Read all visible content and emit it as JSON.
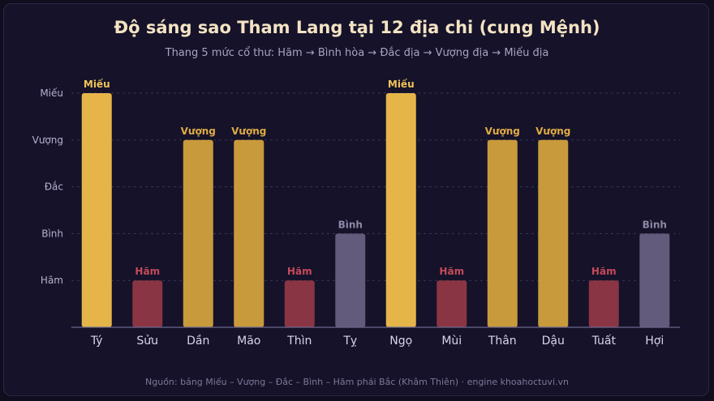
{
  "chart_data": {
    "type": "bar",
    "title": "Độ sáng sao Tham Lang tại 12 địa chi (cung Mệnh)",
    "subtitle": "Thang 5 mức cổ thư: Hãm → Bình hòa → Đắc địa → Vượng địa → Miếu địa",
    "source": "Nguồn: bảng Miếu – Vượng – Đắc – Bình – Hãm phái Bắc (Khâm Thiên) · engine khoahoctuvi.vn",
    "y_tick_labels": [
      "Hãm",
      "Bình",
      "Đắc",
      "Vượng",
      "Miếu"
    ],
    "ylim": [
      0,
      5
    ],
    "grid": true,
    "categories": [
      "Tý",
      "Sửu",
      "Dần",
      "Mão",
      "Thìn",
      "Tỵ",
      "Ngọ",
      "Mùi",
      "Thân",
      "Dậu",
      "Tuất",
      "Hợi"
    ],
    "values": [
      5,
      1,
      4,
      4,
      1,
      2,
      5,
      1,
      4,
      4,
      1,
      2
    ],
    "data_labels": [
      "Miếu",
      "Hãm",
      "Vượng",
      "Vượng",
      "Hãm",
      "Bình",
      "Miếu",
      "Hãm",
      "Vượng",
      "Vượng",
      "Hãm",
      "Bình"
    ],
    "colors": {
      "Miếu": "#e6b54a",
      "Vượng": "#c99a3c",
      "Bình": "#625b7b",
      "Hãm": "#8a3543"
    },
    "label_colors": {
      "Miếu": "#f0c35a",
      "Vượng": "#e0ab45",
      "Bình": "#8e88a6",
      "Hãm": "#c54a5a"
    }
  }
}
